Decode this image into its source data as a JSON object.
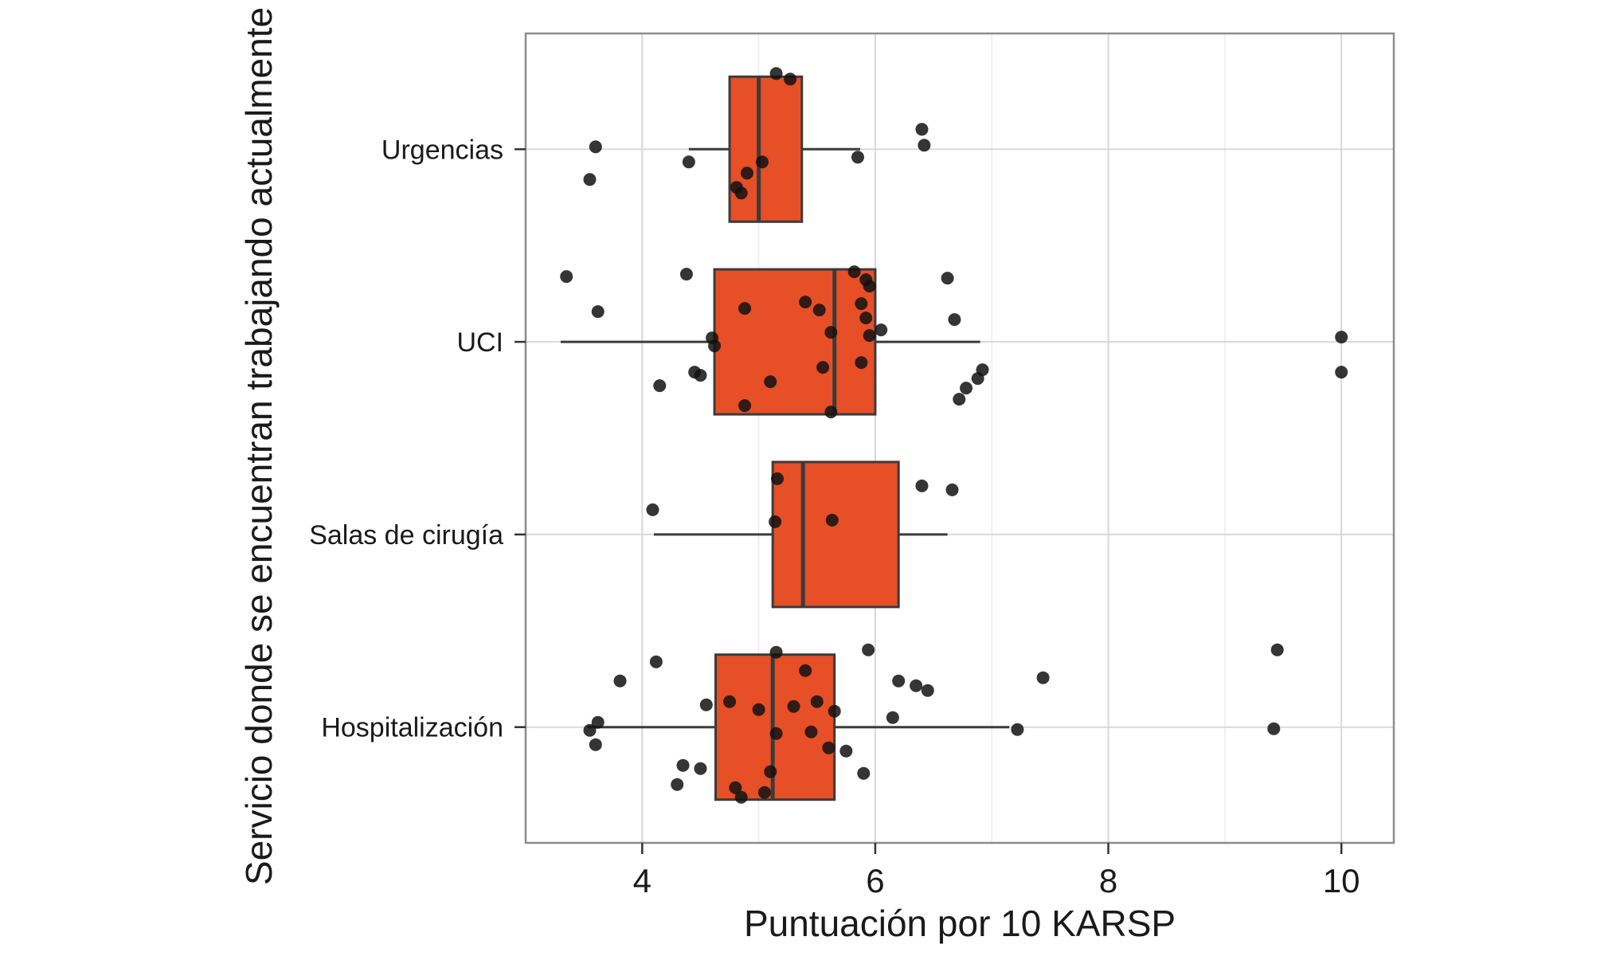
{
  "chart_data": {
    "type": "boxplot",
    "orientation": "horizontal",
    "title": "",
    "xlabel": "Puntuación por 10 KARSP",
    "ylabel": "Servicio donde se encuentran trabajando actualmente",
    "xlim": [
      3.0,
      10.45
    ],
    "xticks": [
      4,
      6,
      8,
      10
    ],
    "xticks_minor": [
      5,
      7,
      9
    ],
    "grid": true,
    "legend": false,
    "box_fill": "#E74F27",
    "box_stroke": "#3B3B3B",
    "point_color": "#121212",
    "grid_color": "#D9D9D9",
    "grid_minor_color": "#ECECEC",
    "panel_border": "#8C8C8C",
    "categories": [
      "Urgencias",
      "UCI",
      "Salas de cirugía",
      "Hospitalización"
    ],
    "boxes": [
      {
        "category": "Urgencias",
        "whisker_low": 4.4,
        "q1": 4.75,
        "median": 5.0,
        "q3": 5.37,
        "whisker_high": 5.87
      },
      {
        "category": "UCI",
        "whisker_low": 3.3,
        "q1": 4.62,
        "median": 5.65,
        "q3": 6.0,
        "whisker_high": 6.9
      },
      {
        "category": "Salas de cirugía",
        "whisker_low": 4.1,
        "q1": 5.12,
        "median": 5.38,
        "q3": 6.2,
        "whisker_high": 6.62
      },
      {
        "category": "Hospitalización",
        "whisker_low": 3.53,
        "q1": 4.63,
        "median": 5.12,
        "q3": 5.65,
        "whisker_high": 7.15
      }
    ],
    "points": [
      {
        "category": "Urgencias",
        "values": [
          [
            5.15,
            -95
          ],
          [
            5.27,
            -88
          ],
          [
            3.6,
            -3
          ],
          [
            6.4,
            -25
          ],
          [
            6.42,
            -5
          ],
          [
            4.4,
            16
          ],
          [
            5.85,
            10
          ],
          [
            3.55,
            38
          ],
          [
            5.03,
            16
          ],
          [
            4.9,
            30
          ],
          [
            4.85,
            55
          ],
          [
            4.81,
            48
          ]
        ]
      },
      {
        "category": "UCI",
        "values": [
          [
            3.35,
            -82
          ],
          [
            4.38,
            -85
          ],
          [
            5.82,
            -88
          ],
          [
            5.92,
            -78
          ],
          [
            5.95,
            -70
          ],
          [
            6.62,
            -80
          ],
          [
            3.62,
            -38
          ],
          [
            4.88,
            -42
          ],
          [
            5.52,
            -40
          ],
          [
            5.88,
            -48
          ],
          [
            5.92,
            -30
          ],
          [
            6.68,
            -28
          ],
          [
            4.6,
            -5
          ],
          [
            4.62,
            5
          ],
          [
            5.62,
            -12
          ],
          [
            5.95,
            -8
          ],
          [
            6.05,
            -15
          ],
          [
            10.0,
            -6
          ],
          [
            5.4,
            -50
          ],
          [
            4.45,
            38
          ],
          [
            4.5,
            42
          ],
          [
            5.55,
            32
          ],
          [
            5.88,
            26
          ],
          [
            6.92,
            35
          ],
          [
            10.0,
            38
          ],
          [
            4.15,
            55
          ],
          [
            5.1,
            50
          ],
          [
            6.78,
            58
          ],
          [
            6.88,
            46
          ],
          [
            4.88,
            80
          ],
          [
            5.62,
            88
          ],
          [
            6.72,
            72
          ]
        ]
      },
      {
        "category": "Salas de cirugía",
        "values": [
          [
            5.16,
            -70
          ],
          [
            6.4,
            -61
          ],
          [
            6.66,
            -56
          ],
          [
            4.09,
            -31
          ],
          [
            5.14,
            -16
          ],
          [
            5.63,
            -18
          ]
        ]
      },
      {
        "category": "Hospitalización",
        "values": [
          [
            4.12,
            -82
          ],
          [
            5.15,
            -94
          ],
          [
            5.94,
            -97
          ],
          [
            3.81,
            -58
          ],
          [
            5.4,
            -71
          ],
          [
            6.2,
            -58
          ],
          [
            6.35,
            -52
          ],
          [
            6.45,
            -46
          ],
          [
            7.44,
            -62
          ],
          [
            9.45,
            -97
          ],
          [
            4.55,
            -28
          ],
          [
            4.75,
            -32
          ],
          [
            5.0,
            -22
          ],
          [
            5.3,
            -26
          ],
          [
            5.5,
            -32
          ],
          [
            5.65,
            -20
          ],
          [
            6.15,
            -12
          ],
          [
            3.55,
            4
          ],
          [
            3.62,
            -6
          ],
          [
            5.15,
            8
          ],
          [
            5.45,
            6
          ],
          [
            7.22,
            3
          ],
          [
            9.42,
            2
          ],
          [
            3.6,
            22
          ],
          [
            5.6,
            26
          ],
          [
            5.75,
            30
          ],
          [
            4.35,
            48
          ],
          [
            4.5,
            52
          ],
          [
            5.1,
            56
          ],
          [
            5.9,
            58
          ],
          [
            4.3,
            72
          ],
          [
            4.8,
            76
          ],
          [
            5.05,
            82
          ],
          [
            4.85,
            88
          ]
        ]
      }
    ]
  }
}
